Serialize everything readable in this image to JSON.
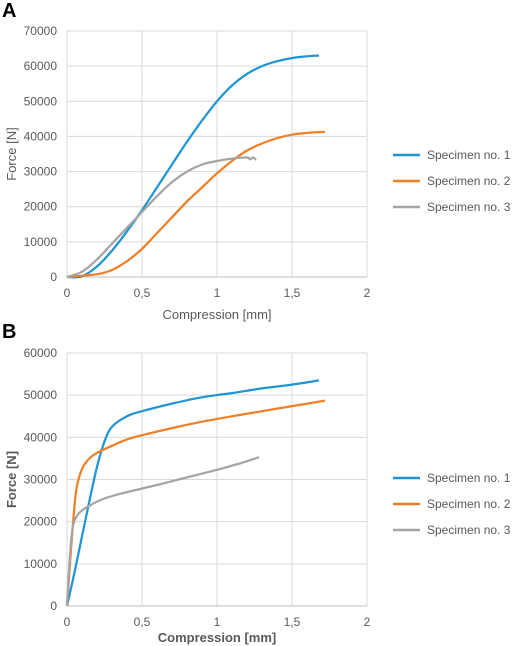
{
  "chart_data": [
    {
      "panel": "A",
      "type": "line",
      "xlabel": "Compression [mm]",
      "ylabel": "Force [N]",
      "axis_title_bold": false,
      "xlim": [
        0,
        2
      ],
      "ylim": [
        0,
        70000
      ],
      "xticks": [
        "0",
        "0,5",
        "1",
        "1,5",
        "2"
      ],
      "yticks": [
        "0",
        "10000",
        "20000",
        "30000",
        "40000",
        "50000",
        "60000",
        "70000"
      ],
      "grid": true,
      "legend_position": "right",
      "series": [
        {
          "name": "Specimen no. 1",
          "color": "#1f96d3",
          "points": [
            [
              0,
              0
            ],
            [
              0.1,
              200
            ],
            [
              0.2,
              3000
            ],
            [
              0.3,
              7500
            ],
            [
              0.4,
              13000
            ],
            [
              0.5,
              19000
            ],
            [
              0.6,
              25500
            ],
            [
              0.7,
              32000
            ],
            [
              0.8,
              38500
            ],
            [
              0.9,
              44500
            ],
            [
              1.0,
              50000
            ],
            [
              1.1,
              54500
            ],
            [
              1.2,
              57800
            ],
            [
              1.3,
              60000
            ],
            [
              1.4,
              61400
            ],
            [
              1.5,
              62300
            ],
            [
              1.6,
              62800
            ],
            [
              1.68,
              63000
            ]
          ]
        },
        {
          "name": "Specimen no. 2",
          "color": "#f07f25",
          "points": [
            [
              0,
              0
            ],
            [
              0.2,
              800
            ],
            [
              0.3,
              2000
            ],
            [
              0.4,
              4500
            ],
            [
              0.5,
              8000
            ],
            [
              0.6,
              12500
            ],
            [
              0.7,
              17000
            ],
            [
              0.8,
              21500
            ],
            [
              0.9,
              25500
            ],
            [
              1.0,
              29500
            ],
            [
              1.1,
              33000
            ],
            [
              1.2,
              36000
            ],
            [
              1.3,
              38000
            ],
            [
              1.4,
              39500
            ],
            [
              1.5,
              40500
            ],
            [
              1.6,
              41000
            ],
            [
              1.72,
              41300
            ]
          ]
        },
        {
          "name": "Specimen no. 3",
          "color": "#a5a5a5",
          "points": [
            [
              0,
              0
            ],
            [
              0.1,
              1500
            ],
            [
              0.2,
              5000
            ],
            [
              0.3,
              9500
            ],
            [
              0.4,
              14000
            ],
            [
              0.5,
              18500
            ],
            [
              0.6,
              23000
            ],
            [
              0.7,
              27000
            ],
            [
              0.8,
              30000
            ],
            [
              0.9,
              32000
            ],
            [
              1.0,
              33000
            ],
            [
              1.1,
              33700
            ],
            [
              1.2,
              34000
            ],
            [
              1.22,
              33500
            ],
            [
              1.24,
              34000
            ],
            [
              1.26,
              33300
            ]
          ]
        }
      ]
    },
    {
      "panel": "B",
      "type": "line",
      "xlabel": "Compression [mm]",
      "ylabel": "Force [N]",
      "axis_title_bold": true,
      "xlim": [
        0,
        2
      ],
      "ylim": [
        0,
        60000
      ],
      "xticks": [
        "0",
        "0,5",
        "1",
        "1,5",
        "2"
      ],
      "yticks": [
        "0",
        "10000",
        "20000",
        "30000",
        "40000",
        "50000",
        "60000"
      ],
      "grid": true,
      "legend_position": "right",
      "series": [
        {
          "name": "Specimen no. 1",
          "color": "#1f96d3",
          "points": [
            [
              0,
              0
            ],
            [
              0.05,
              8000
            ],
            [
              0.1,
              16500
            ],
            [
              0.15,
              25000
            ],
            [
              0.2,
              33000
            ],
            [
              0.25,
              39000
            ],
            [
              0.3,
              42500
            ],
            [
              0.4,
              45000
            ],
            [
              0.5,
              46200
            ],
            [
              0.7,
              48000
            ],
            [
              0.9,
              49500
            ],
            [
              1.1,
              50500
            ],
            [
              1.3,
              51600
            ],
            [
              1.5,
              52500
            ],
            [
              1.68,
              53500
            ]
          ]
        },
        {
          "name": "Specimen no. 2",
          "color": "#f07f25",
          "points": [
            [
              0,
              0
            ],
            [
              0.03,
              15000
            ],
            [
              0.06,
              27000
            ],
            [
              0.1,
              32500
            ],
            [
              0.15,
              35000
            ],
            [
              0.2,
              36300
            ],
            [
              0.3,
              38000
            ],
            [
              0.4,
              39500
            ],
            [
              0.5,
              40500
            ],
            [
              0.7,
              42200
            ],
            [
              0.9,
              43700
            ],
            [
              1.1,
              45000
            ],
            [
              1.3,
              46200
            ],
            [
              1.5,
              47400
            ],
            [
              1.72,
              48700
            ]
          ]
        },
        {
          "name": "Specimen no. 3",
          "color": "#a5a5a5",
          "points": [
            [
              0,
              0
            ],
            [
              0.02,
              12000
            ],
            [
              0.04,
              19000
            ],
            [
              0.08,
              22000
            ],
            [
              0.15,
              23800
            ],
            [
              0.25,
              25500
            ],
            [
              0.4,
              27000
            ],
            [
              0.6,
              28700
            ],
            [
              0.8,
              30500
            ],
            [
              1.0,
              32300
            ],
            [
              1.15,
              33800
            ],
            [
              1.28,
              35300
            ]
          ]
        }
      ]
    }
  ]
}
